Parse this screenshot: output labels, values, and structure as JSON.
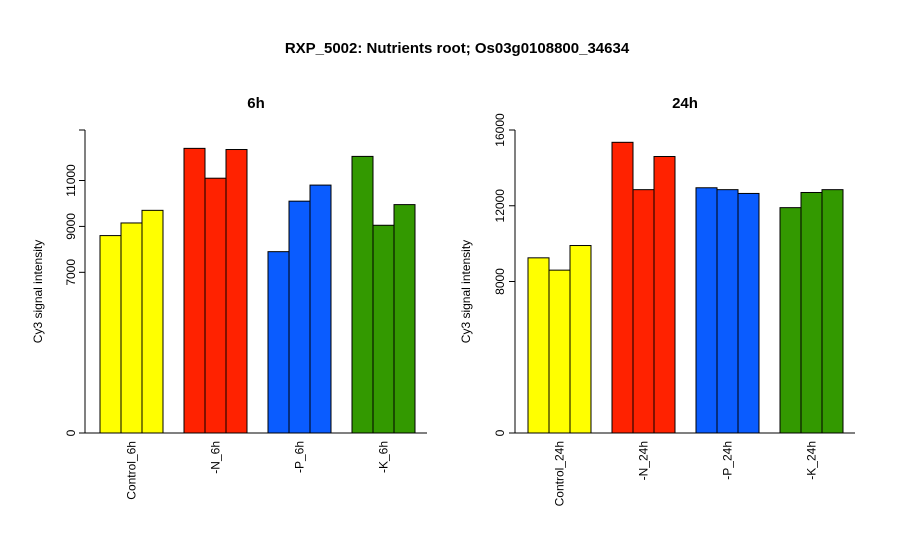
{
  "title": "RXP_5002: Nutrients root; Os03g0108800_34634",
  "chart_data": [
    {
      "type": "bar",
      "title": "6h",
      "ylabel": "Cy3 signal intensity",
      "yticks": [
        0,
        7000,
        9000,
        11000
      ],
      "ylim": [
        0,
        13200
      ],
      "categories": [
        "Control_6h",
        "-N_6h",
        "-P_6h",
        "-K_6h"
      ],
      "colors": [
        "#ffff00",
        "#ff2200",
        "#0a5cff",
        "#339900"
      ],
      "groups": [
        {
          "label": "Control_6h",
          "values": [
            8600,
            9150,
            9700
          ]
        },
        {
          "label": "-N_6h",
          "values": [
            12400,
            11100,
            12350
          ]
        },
        {
          "label": "-P_6h",
          "values": [
            7900,
            10100,
            10800
          ]
        },
        {
          "label": "-K_6h",
          "values": [
            12050,
            9050,
            9950
          ]
        }
      ]
    },
    {
      "type": "bar",
      "title": "24h",
      "ylabel": "Cy3 signal intensity",
      "yticks": [
        0,
        8000,
        12000,
        16000
      ],
      "ylim": [
        0,
        16000
      ],
      "categories": [
        "Control_24h",
        "-N_24h",
        "-P_24h",
        "-K_24h"
      ],
      "colors": [
        "#ffff00",
        "#ff2200",
        "#0a5cff",
        "#339900"
      ],
      "groups": [
        {
          "label": "Control_24h",
          "values": [
            9250,
            8600,
            9900
          ]
        },
        {
          "label": "-N_24h",
          "values": [
            15350,
            12850,
            14600
          ]
        },
        {
          "label": "-P_24h",
          "values": [
            12950,
            12850,
            12650
          ]
        },
        {
          "label": "-K_24h",
          "values": [
            11900,
            12700,
            12850
          ]
        }
      ]
    }
  ]
}
